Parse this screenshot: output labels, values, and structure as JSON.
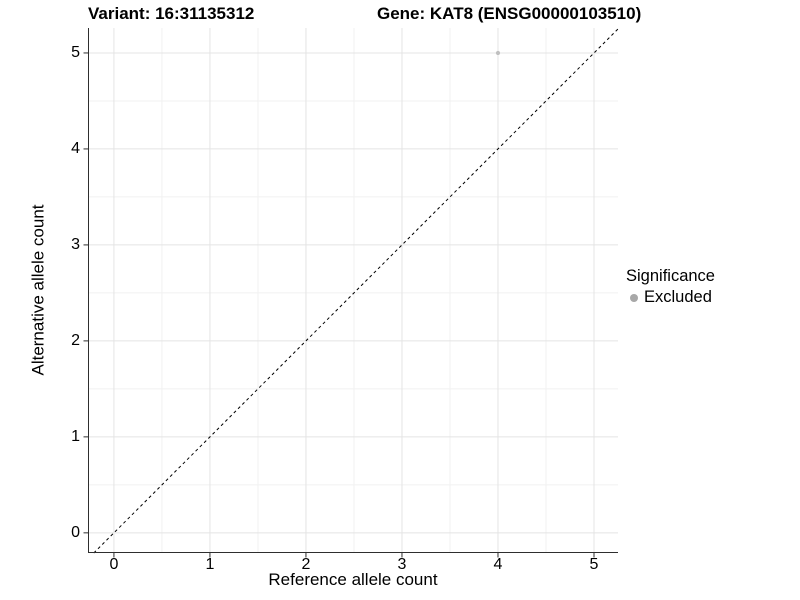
{
  "chart_data": {
    "type": "scatter",
    "title_left": "Variant: 16:31135312",
    "title_right": "Gene: KAT8 (ENSG00000103510)",
    "xlabel": "Reference allele count",
    "ylabel": "Alternative allele count",
    "x_ticks": [
      0,
      1,
      2,
      3,
      4,
      5
    ],
    "y_ticks": [
      0,
      1,
      2,
      3,
      4,
      5
    ],
    "xlim": [
      -0.27,
      5.25
    ],
    "ylim": [
      -0.21,
      5.26
    ],
    "grid": {
      "major": true,
      "minor": true
    },
    "points": [
      {
        "x": 4,
        "y": 5,
        "series": "Excluded"
      }
    ],
    "identity_line": {
      "equation": "y = x",
      "style": "dashed"
    },
    "legend": {
      "title": "Significance",
      "position": "right",
      "items": [
        {
          "label": "Excluded",
          "color": "#a8a8a8"
        }
      ]
    },
    "colors": {
      "point": "#c0c0c0",
      "grid_major": "#e4e4e4",
      "grid_minor": "#f1f1f1",
      "axis": "#2e2e2e",
      "dashed_line": "#000000",
      "text": "#000000",
      "background": "#ffffff"
    }
  }
}
